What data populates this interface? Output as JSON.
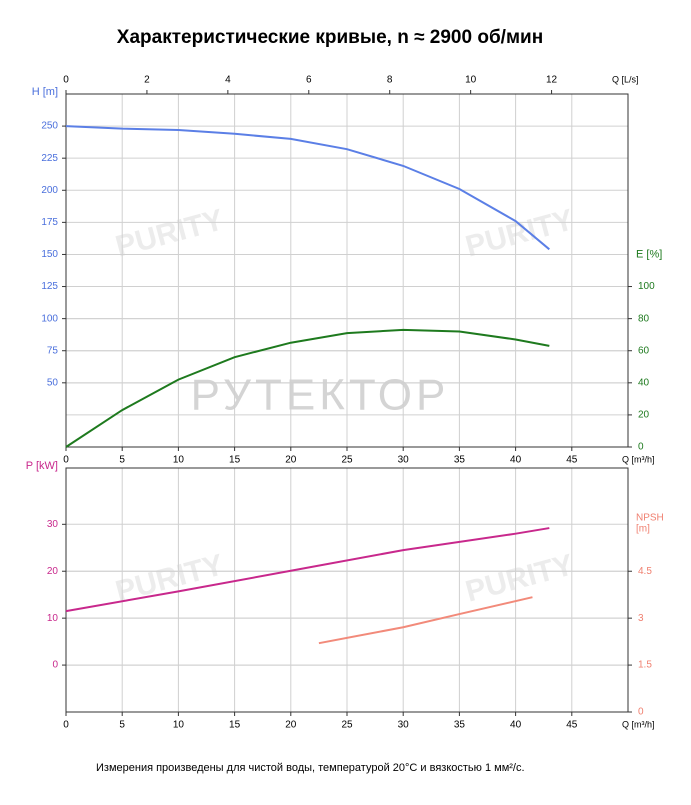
{
  "chart_data": [
    {
      "type": "line",
      "title": "Характеристические кривые, n ≈ 2900 об/мин",
      "watermark": "РУТЕКТОР",
      "logo_watermark": "PURITY",
      "xlabel": "Q [m³/h]",
      "xlim": [
        0,
        50
      ],
      "xticks": [
        0,
        5,
        10,
        15,
        20,
        25,
        30,
        35,
        40,
        45
      ],
      "x2label": "Q [L/s]",
      "x2lim": [
        0,
        13.889
      ],
      "x2ticks": [
        0,
        2,
        4,
        6,
        8,
        10,
        12
      ],
      "ylabel": "H [m]",
      "ylim": [
        0,
        275
      ],
      "yticks": [
        50,
        75,
        100,
        125,
        150,
        175,
        200,
        225,
        250
      ],
      "ycolor": "#4a6fdc",
      "y2label": "E [%]",
      "y2lim": [
        0,
        220
      ],
      "y2ticks": [
        0,
        20,
        40,
        60,
        80,
        100
      ],
      "y2color": "#1e7a1e",
      "grid": true,
      "series": [
        {
          "name": "H",
          "color": "#5b7fe6",
          "x": [
            0,
            5,
            10,
            15,
            20,
            25,
            30,
            35,
            40,
            43
          ],
          "values": [
            250,
            248,
            247,
            244,
            240,
            232,
            219,
            201,
            176,
            154
          ]
        },
        {
          "name": "E",
          "color": "#1e7a1e",
          "axis": "y2",
          "x": [
            0,
            5,
            10,
            15,
            20,
            25,
            30,
            35,
            40,
            43
          ],
          "values": [
            0,
            23,
            42,
            56,
            65,
            71,
            73,
            72,
            67,
            63
          ]
        }
      ]
    },
    {
      "type": "line",
      "note": "Измерения произведены для чистой воды, температурой 20°C и вязкостью 1 мм²/с.",
      "logo_watermark": "PURITY",
      "xlabel": "Q [m³/h]",
      "xlim": [
        0,
        50
      ],
      "xticks": [
        0,
        5,
        10,
        15,
        20,
        25,
        30,
        35,
        40,
        45
      ],
      "ylabel": "P [kW]",
      "ylim": [
        -10,
        42
      ],
      "yticks": [
        0,
        10,
        20,
        30
      ],
      "ycolor": "#c8288c",
      "y2label": [
        "NPSH",
        "[m]"
      ],
      "y2lim": [
        0,
        7.8
      ],
      "y2ticks": [
        0,
        1.5,
        3,
        4.5
      ],
      "y2color": "#f08070",
      "grid": true,
      "series": [
        {
          "name": "P",
          "color": "#c8288c",
          "x": [
            0,
            10,
            20,
            30,
            40,
            43
          ],
          "values": [
            11.5,
            15.7,
            20.1,
            24.5,
            28,
            29.2
          ]
        },
        {
          "name": "NPSH",
          "color": "#f28a7a",
          "axis": "y2",
          "x": [
            22.5,
            30,
            35,
            41.5
          ],
          "values": [
            2.2,
            2.71,
            3.13,
            3.67
          ]
        }
      ]
    }
  ]
}
